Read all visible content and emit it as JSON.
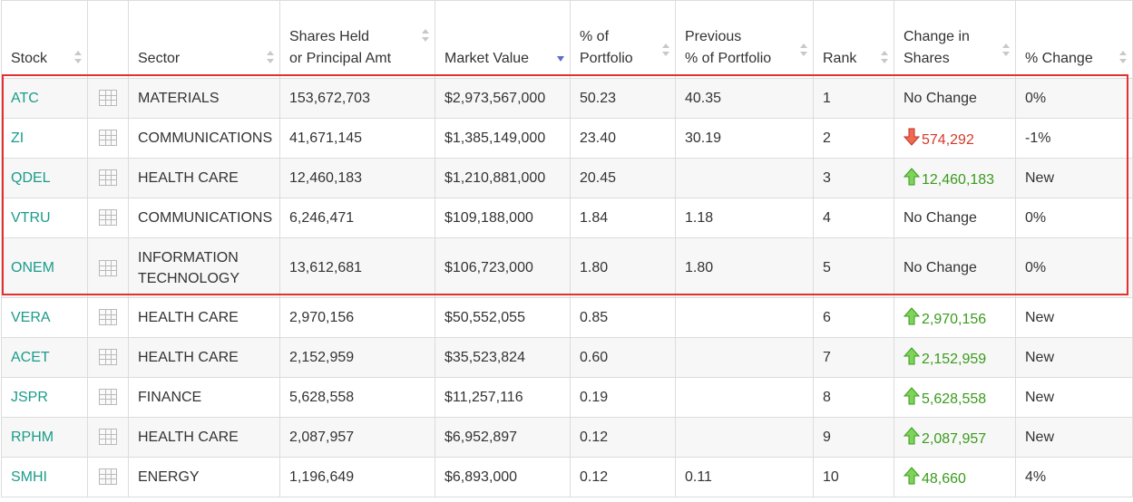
{
  "colors": {
    "ticker": "#1a9c8a",
    "up": "#3a9b1c",
    "down": "#d33a2a",
    "highlight": "#e53030",
    "sort_active": "#5d6bd0"
  },
  "headers": {
    "stock": "Stock",
    "sector": "Sector",
    "shares_line1": "Shares Held",
    "shares_line2": "or Principal Amt",
    "market_value": "Market Value",
    "pct_line1": "% of",
    "pct_line2": "Portfolio",
    "prev_line1": "Previous",
    "prev_line2": "% of Portfolio",
    "rank": "Rank",
    "chg_line1": "Change in",
    "chg_line2": "Shares",
    "pct_change": "% Change"
  },
  "sort": {
    "column": "Market Value",
    "direction": "descending"
  },
  "rows": [
    {
      "stock": "ATC",
      "sector": "MATERIALS",
      "shares": "153,672,703",
      "market_value": "$2,973,567,000",
      "pct": "50.23",
      "prev_pct": "40.35",
      "rank": "1",
      "change": "No Change",
      "change_dir": "none",
      "pct_change": "0%"
    },
    {
      "stock": "ZI",
      "sector": "COMMUNICATIONS",
      "shares": "41,671,145",
      "market_value": "$1,385,149,000",
      "pct": "23.40",
      "prev_pct": "30.19",
      "rank": "2",
      "change": "574,292",
      "change_dir": "down",
      "pct_change": "-1%"
    },
    {
      "stock": "QDEL",
      "sector": "HEALTH CARE",
      "shares": "12,460,183",
      "market_value": "$1,210,881,000",
      "pct": "20.45",
      "prev_pct": "",
      "rank": "3",
      "change": "12,460,183",
      "change_dir": "up",
      "pct_change": "New"
    },
    {
      "stock": "VTRU",
      "sector": "COMMUNICATIONS",
      "shares": "6,246,471",
      "market_value": "$109,188,000",
      "pct": "1.84",
      "prev_pct": "1.18",
      "rank": "4",
      "change": "No Change",
      "change_dir": "none",
      "pct_change": "0%"
    },
    {
      "stock": "ONEM",
      "sector_line1": "INFORMATION",
      "sector_line2": "TECHNOLOGY",
      "shares": "13,612,681",
      "market_value": "$106,723,000",
      "pct": "1.80",
      "prev_pct": "1.80",
      "rank": "5",
      "change": "No Change",
      "change_dir": "none",
      "pct_change": "0%"
    },
    {
      "stock": "VERA",
      "sector": "HEALTH CARE",
      "shares": "2,970,156",
      "market_value": "$50,552,055",
      "pct": "0.85",
      "prev_pct": "",
      "rank": "6",
      "change": "2,970,156",
      "change_dir": "up",
      "pct_change": "New"
    },
    {
      "stock": "ACET",
      "sector": "HEALTH CARE",
      "shares": "2,152,959",
      "market_value": "$35,523,824",
      "pct": "0.60",
      "prev_pct": "",
      "rank": "7",
      "change": "2,152,959",
      "change_dir": "up",
      "pct_change": "New"
    },
    {
      "stock": "JSPR",
      "sector": "FINANCE",
      "shares": "5,628,558",
      "market_value": "$11,257,116",
      "pct": "0.19",
      "prev_pct": "",
      "rank": "8",
      "change": "5,628,558",
      "change_dir": "up",
      "pct_change": "New"
    },
    {
      "stock": "RPHM",
      "sector": "HEALTH CARE",
      "shares": "2,087,957",
      "market_value": "$6,952,897",
      "pct": "0.12",
      "prev_pct": "",
      "rank": "9",
      "change": "2,087,957",
      "change_dir": "up",
      "pct_change": "New"
    },
    {
      "stock": "SMHI",
      "sector": "ENERGY",
      "shares": "1,196,649",
      "market_value": "$6,893,000",
      "pct": "0.12",
      "prev_pct": "0.11",
      "rank": "10",
      "change": "48,660",
      "change_dir": "up",
      "pct_change": "4%"
    }
  ]
}
